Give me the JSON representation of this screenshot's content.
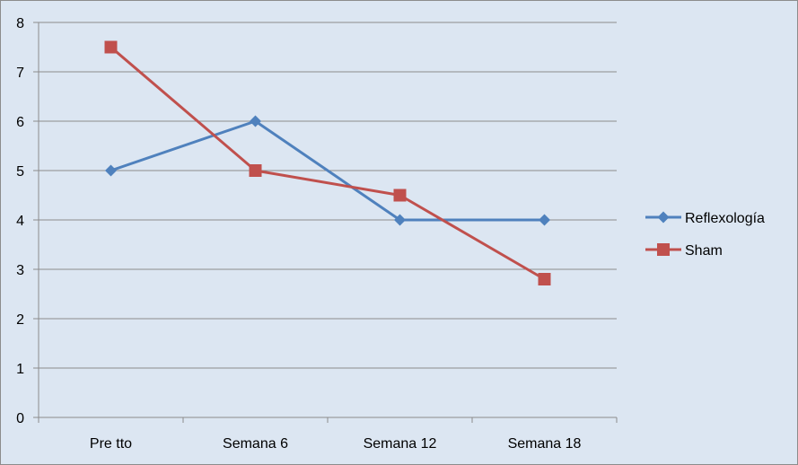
{
  "chart_data": {
    "type": "line",
    "categories": [
      "Pre tto",
      "Semana 6",
      "Semana 12",
      "Semana 18"
    ],
    "series": [
      {
        "name": "Reflexología",
        "values": [
          5,
          6,
          4,
          4
        ],
        "color": "#4f81bd",
        "marker": "diamond"
      },
      {
        "name": "Sham",
        "values": [
          7.5,
          5,
          4.5,
          2.8
        ],
        "color": "#c0504d",
        "marker": "square"
      }
    ],
    "title": "",
    "xlabel": "",
    "ylabel": "",
    "ylim": [
      0,
      8
    ],
    "yticks": [
      0,
      1,
      2,
      3,
      4,
      5,
      6,
      7,
      8
    ],
    "grid": true,
    "legend": "right",
    "background_color": "#dce6f2",
    "gridline_color": "#8c8c8c"
  }
}
